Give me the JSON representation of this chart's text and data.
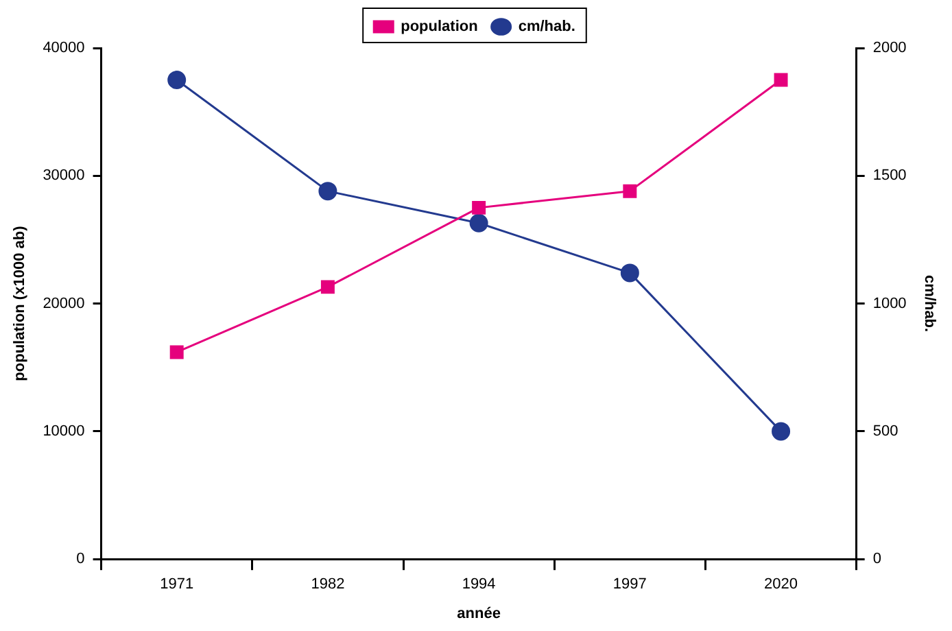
{
  "chart_data": {
    "type": "line",
    "xlabel": "année",
    "ylabel": "population (x1000 ab)",
    "y2label": "cm/hab.",
    "categories": [
      "1971",
      "1982",
      "1994",
      "1997",
      "2020"
    ],
    "series": [
      {
        "name": "population",
        "color": "#e5007d",
        "marker": "square",
        "values": [
          16200,
          21300,
          27500,
          28800,
          37500
        ]
      },
      {
        "name": "cm/hab.",
        "color": "#233a8f",
        "marker": "circle",
        "axis": "y2",
        "values": [
          1875,
          1440,
          1315,
          1120,
          500
        ]
      }
    ],
    "ylim": [
      0,
      40000
    ],
    "yticks": [
      0,
      10000,
      20000,
      30000,
      40000
    ],
    "y2lim": [
      0,
      2000
    ],
    "y2ticks": [
      0,
      500,
      1000,
      1500,
      2000
    ],
    "grid": false,
    "legend": "top"
  }
}
